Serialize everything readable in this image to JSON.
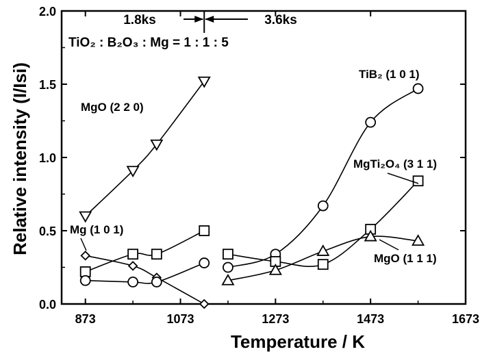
{
  "chart_data": {
    "type": "line",
    "xlabel": "Temperature / K",
    "ylabel": "Relative intensity (I/Isi)",
    "xlim": [
      823,
      1673
    ],
    "ylim": [
      0,
      2.0
    ],
    "xticks": [
      "873",
      "1073",
      "1273",
      "1473",
      "1673"
    ],
    "yticks": [
      "0.0",
      "0.5",
      "1.0",
      "1.5",
      "2.0"
    ],
    "grid": false,
    "annotations": {
      "time_left": "1.8ks",
      "time_right": "3.6ks",
      "composition": "TiO₂ : B₂O₃ : Mg = 1 : 1 : 5",
      "time_boundary_x": 1123
    },
    "series": [
      {
        "name": "MgO (2 2 0)",
        "marker": "triangle-down",
        "points": [
          [
            873,
            0.6
          ],
          [
            973,
            0.91
          ],
          [
            1023,
            1.09
          ],
          [
            1123,
            1.52
          ]
        ]
      },
      {
        "name": "Mg (1 0 1)",
        "marker": "diamond",
        "points": [
          [
            873,
            0.33
          ],
          [
            973,
            0.26
          ],
          [
            1023,
            0.18
          ],
          [
            1123,
            0.0
          ]
        ]
      },
      {
        "name": "",
        "marker": "square",
        "points": [
          [
            873,
            0.22
          ],
          [
            973,
            0.34
          ],
          [
            1023,
            0.34
          ],
          [
            1123,
            0.5
          ]
        ]
      },
      {
        "name": "",
        "marker": "circle",
        "points": [
          [
            873,
            0.16
          ],
          [
            973,
            0.15
          ],
          [
            1023,
            0.15
          ],
          [
            1123,
            0.28
          ]
        ]
      },
      {
        "name": "TiB₂ (1 0 1)",
        "marker": "circle",
        "points": [
          [
            1173,
            0.25
          ],
          [
            1273,
            0.34
          ],
          [
            1373,
            0.67
          ],
          [
            1473,
            1.24
          ],
          [
            1573,
            1.47
          ]
        ]
      },
      {
        "name": "MgTi₂O₄ (3 1 1)",
        "marker": "square",
        "points": [
          [
            1173,
            0.34
          ],
          [
            1273,
            0.29
          ],
          [
            1373,
            0.27
          ],
          [
            1473,
            0.51
          ],
          [
            1573,
            0.84
          ]
        ]
      },
      {
        "name": "MgO (1 1 1)",
        "marker": "triangle-up",
        "points": [
          [
            1173,
            0.16
          ],
          [
            1273,
            0.23
          ],
          [
            1373,
            0.36
          ],
          [
            1473,
            0.46
          ],
          [
            1573,
            0.43
          ]
        ]
      }
    ]
  }
}
